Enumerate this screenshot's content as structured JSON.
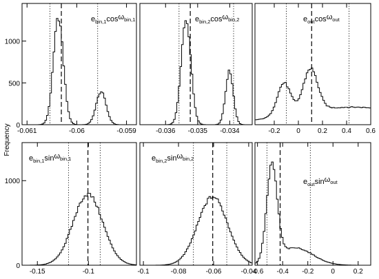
{
  "figure": {
    "ylabel": "Frequency"
  },
  "chart_data": [
    {
      "type": "histogram",
      "panel": "e_bin1_cos",
      "label": {
        "pre": "e",
        "sub1": "bin,1",
        "mid": "cos",
        "greek": "ω",
        "sub2": "bin,1"
      },
      "xlim": [
        -0.0611,
        -0.0588
      ],
      "ylim": [
        0,
        1450
      ],
      "xticks": [
        -0.061,
        -0.06,
        -0.059
      ],
      "xtick_labels": [
        "-0.061",
        "-0.06",
        "-0.059"
      ],
      "yticks": [
        0,
        500,
        1000
      ],
      "ytick_labels": [
        "0",
        "500",
        "1000"
      ],
      "components": [
        {
          "center": -0.06037,
          "sigma": 0.0001,
          "amp": 1280
        },
        {
          "center": -0.05951,
          "sigma": 0.0001,
          "amp": 395
        }
      ],
      "dashed_line": -0.06031,
      "dotted_lines": [
        -0.06054,
        -0.05958
      ]
    },
    {
      "type": "histogram",
      "panel": "e_bin2_cos",
      "label": {
        "pre": "e",
        "sub1": "bin,2",
        "mid": "cos",
        "greek": "ω",
        "sub2": "bin,2"
      },
      "xlim": [
        -0.0368,
        -0.0333
      ],
      "ylim": [
        0,
        1450
      ],
      "xticks": [
        -0.036,
        -0.035,
        -0.034
      ],
      "xtick_labels": [
        "-0.036",
        "-0.035",
        "-0.034"
      ],
      "yticks": [],
      "ytick_labels": [],
      "components": [
        {
          "center": -0.03536,
          "sigma": 0.00015,
          "amp": 1265
        },
        {
          "center": -0.03401,
          "sigma": 0.00012,
          "amp": 640
        }
      ],
      "dashed_line": -0.03523,
      "dotted_lines": [
        -0.03558,
        -0.03388
      ]
    },
    {
      "type": "histogram",
      "panel": "e_out_cos",
      "label": {
        "pre": "e",
        "sub1": "out",
        "mid": "cos",
        "greek": "ω",
        "sub2": "out"
      },
      "xlim": [
        -0.36,
        0.6
      ],
      "ylim": [
        0,
        1450
      ],
      "xticks": [
        -0.2,
        0,
        0.2,
        0.4,
        0.6
      ],
      "xtick_labels": [
        "-0.2",
        "0",
        "0.2",
        "0.4",
        "0.6"
      ],
      "yticks": [],
      "ytick_labels": [],
      "components": [
        {
          "center": -0.12,
          "sigma": 0.055,
          "amp": 390
        },
        {
          "center": 0.1,
          "sigma": 0.06,
          "amp": 510
        },
        {
          "center": 0.45,
          "sigma": 0.5,
          "amp": 210
        }
      ],
      "dashed_line": 0.11,
      "dotted_lines": [
        -0.1,
        0.42
      ]
    },
    {
      "type": "histogram",
      "panel": "e_bin1_sin",
      "label": {
        "pre": "e",
        "sub1": "bin,1",
        "mid": "sin",
        "greek": "ω",
        "sub2": "bin,1"
      },
      "xlim": [
        -0.165,
        -0.053
      ],
      "ylim": [
        0,
        1450
      ],
      "xticks": [
        -0.15,
        -0.1
      ],
      "xtick_labels": [
        "-0.15",
        "-0.1"
      ],
      "yticks": [
        0,
        1000
      ],
      "ytick_labels": [
        "0",
        "1000"
      ],
      "components": [
        {
          "center": -0.1005,
          "sigma": 0.0145,
          "amp": 840
        }
      ],
      "dashed_line": -0.1005,
      "dotted_lines": [
        -0.1195,
        -0.0885
      ]
    },
    {
      "type": "histogram",
      "panel": "e_bin2_sin",
      "label": {
        "pre": "e",
        "sub1": "bin,2",
        "mid": "sin",
        "greek": "ω",
        "sub2": "bin,2"
      },
      "xlim": [
        -0.102,
        -0.038
      ],
      "ylim": [
        0,
        1450
      ],
      "xticks": [
        -0.1,
        -0.08,
        -0.06,
        -0.04
      ],
      "xtick_labels": [
        "-0.1",
        "-0.08",
        "-0.06",
        "-0.04"
      ],
      "yticks": [],
      "ytick_labels": [],
      "components": [
        {
          "center": -0.0605,
          "sigma": 0.0085,
          "amp": 810
        }
      ],
      "dashed_line": -0.0605,
      "dotted_lines": [
        -0.0715,
        -0.0525
      ]
    },
    {
      "type": "histogram",
      "panel": "e_out_sin",
      "label": {
        "pre": "e",
        "sub1": "out",
        "mid": "sin",
        "greek": "ω",
        "sub2": "out"
      },
      "xlim": [
        -0.62,
        0.3
      ],
      "ylim": [
        0,
        1450
      ],
      "xticks": [
        -0.6,
        -0.4,
        -0.2,
        0,
        0.2
      ],
      "xtick_labels": [
        "-0.6",
        "-0.4",
        "-0.2",
        "0",
        "0.2"
      ],
      "yticks": [],
      "ytick_labels": [],
      "components": [
        {
          "center": -0.485,
          "sigma": 0.042,
          "amp": 1110
        },
        {
          "center": -0.3,
          "sigma": 0.14,
          "amp": 205
        }
      ],
      "dashed_line": -0.42,
      "dotted_lines": [
        -0.525,
        -0.18
      ]
    }
  ]
}
